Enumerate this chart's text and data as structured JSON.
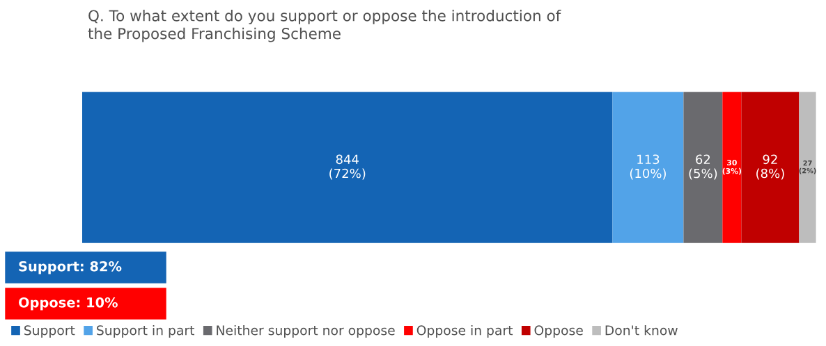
{
  "chart_data": {
    "type": "bar",
    "orientation": "horizontal",
    "stacked": true,
    "title": "Q. To what extent do you support or oppose the introduction of\nthe Proposed Franchising Scheme",
    "categories": [
      null
    ],
    "xlim": [
      0,
      1168
    ],
    "tick_labels": false,
    "grid": false,
    "legend": "bottom",
    "series": [
      {
        "name": "Support",
        "color": "#1464b4",
        "values": [
          844
        ],
        "value_labels": [
          "844\n(72%)"
        ]
      },
      {
        "name": "Support in part",
        "color": "#52a3e8",
        "values": [
          113
        ],
        "value_labels": [
          "113\n(10%)"
        ]
      },
      {
        "name": "Neither support nor oppose",
        "color": "#6a6a6e",
        "values": [
          62
        ],
        "value_labels": [
          "62\n(5%)"
        ]
      },
      {
        "name": "Oppose in part",
        "color": "#ff0000",
        "values": [
          30
        ],
        "value_labels": [
          "30\n(3%)"
        ]
      },
      {
        "name": "Oppose",
        "color": "#c00000",
        "values": [
          92
        ],
        "value_labels": [
          "92\n(8%)"
        ]
      },
      {
        "name": "Don't know",
        "color": "#bdbdbd",
        "values": [
          27
        ],
        "value_labels": [
          "27\n(2%)"
        ]
      }
    ],
    "annotations": [
      "Support: 82%",
      "Oppose: 10%"
    ]
  }
}
